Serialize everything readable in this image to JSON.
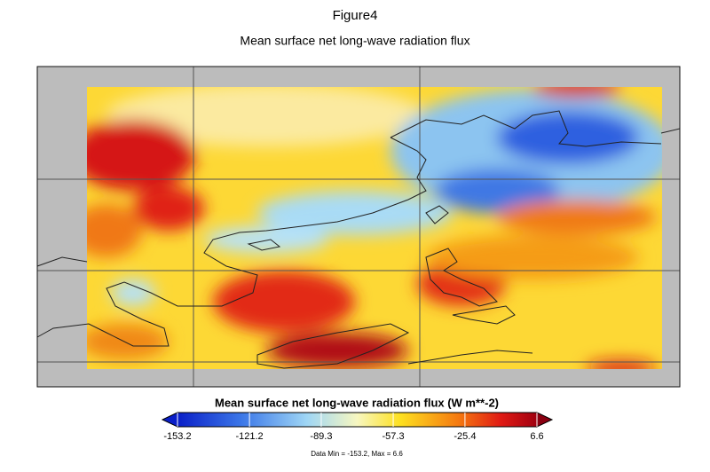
{
  "figure_label": "Figure4",
  "title": "Mean surface net long-wave radiation flux",
  "colorbar": {
    "label": "Mean surface net long-wave radiation flux (W m**-2)",
    "range": [
      -153.2,
      6.6
    ],
    "ticks": [
      -153.2,
      -121.2,
      -89.3,
      -57.3,
      -25.4,
      6.6
    ]
  },
  "footnote": "Data Min = -153.2, Max = 6.6"
}
